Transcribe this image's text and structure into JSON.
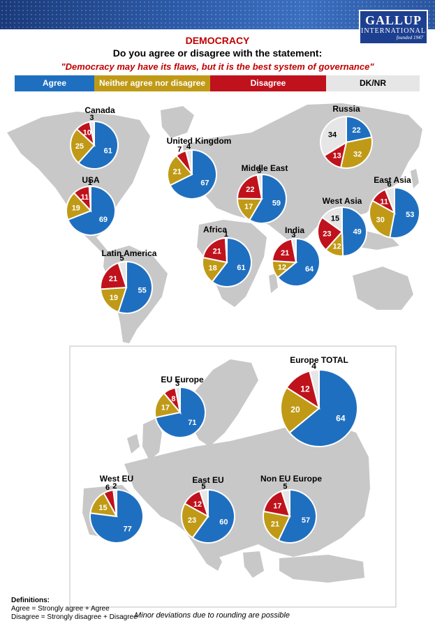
{
  "header": {
    "logo_name": "GALLUP",
    "logo_sub": "INTERNATIONAL",
    "logo_founded": "founded 1947"
  },
  "title": "DEMOCRACY",
  "question": "Do you agree or disagree with the statement:",
  "statement": "\"Democracy may have its flaws, but it is the best system of governance\"",
  "legend": [
    {
      "label": "Agree",
      "color": "#1f6fc0",
      "text_color": "#ffffff"
    },
    {
      "label": "Neither agree nor disagree",
      "color": "#c09a16",
      "text_color": "#ffffff"
    },
    {
      "label": "Disagree",
      "color": "#c0121c",
      "text_color": "#ffffff"
    },
    {
      "label": "DK/NR",
      "color": "#e6e6e6",
      "text_color": "#000000"
    }
  ],
  "chart_data": {
    "type": "pie",
    "categories": [
      "Agree",
      "Neither agree nor disagree",
      "Disagree",
      "DK/NR"
    ],
    "colors": [
      "#1f6fc0",
      "#c09a16",
      "#c0121c",
      "#e6e6e6"
    ],
    "pies": [
      {
        "name": "Canada",
        "values": [
          61,
          25,
          10,
          3
        ]
      },
      {
        "name": "United Kingdom",
        "values": [
          67,
          21,
          7,
          4
        ]
      },
      {
        "name": "Russia",
        "values": [
          22,
          32,
          13,
          34
        ]
      },
      {
        "name": "USA",
        "values": [
          69,
          19,
          11,
          1
        ]
      },
      {
        "name": "Middle East",
        "values": [
          59,
          17,
          22,
          3
        ]
      },
      {
        "name": "East Asia",
        "values": [
          53,
          30,
          11,
          6
        ]
      },
      {
        "name": "West Asia",
        "values": [
          49,
          12,
          23,
          15
        ]
      },
      {
        "name": "Africa",
        "values": [
          61,
          18,
          21,
          1
        ]
      },
      {
        "name": "India",
        "values": [
          64,
          12,
          21,
          3
        ]
      },
      {
        "name": "Latin America",
        "values": [
          55,
          19,
          21,
          5
        ]
      },
      {
        "name": "EU Europe",
        "values": [
          71,
          17,
          8,
          3
        ]
      },
      {
        "name": "Europe TOTAL",
        "values": [
          64,
          20,
          12,
          4
        ]
      },
      {
        "name": "West EU",
        "values": [
          77,
          15,
          6,
          2
        ]
      },
      {
        "name": "East EU",
        "values": [
          60,
          23,
          12,
          5
        ]
      },
      {
        "name": "Non EU Europe",
        "values": [
          57,
          21,
          17,
          5
        ]
      }
    ]
  },
  "definitions": {
    "heading": "Definitions:",
    "agree": "Agree = Strongly agree + Agree",
    "disagree": "Disagree = Strongly disagree + Disagree"
  },
  "note": "Minor deviations due to rounding are possible"
}
